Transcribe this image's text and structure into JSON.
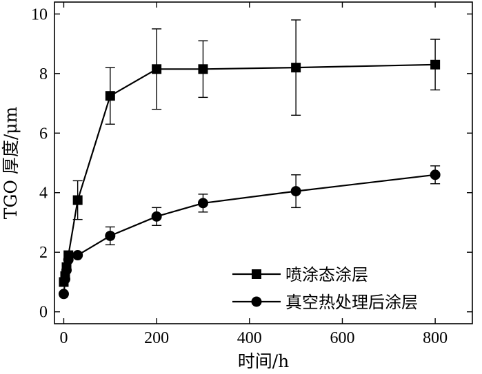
{
  "chart_data": {
    "type": "line",
    "xlabel": "时间/h",
    "ylabel": "TGO 厚度/μm",
    "xlim": [
      -20,
      880
    ],
    "ylim": [
      -0.4,
      10.4
    ],
    "xticks": [
      0,
      200,
      400,
      600,
      800
    ],
    "yticks": [
      0,
      2,
      4,
      6,
      8,
      10
    ],
    "legend_position": "bottom-right",
    "grid": false,
    "series": [
      {
        "name": "喷涂态涂层",
        "marker": "square",
        "color": "#000000",
        "x": [
          0,
          3,
          6,
          10,
          30,
          100,
          200,
          300,
          500,
          800
        ],
        "y": [
          1.0,
          1.2,
          1.5,
          1.9,
          3.75,
          7.25,
          8.15,
          8.15,
          8.2,
          8.3
        ],
        "err": [
          0,
          0,
          0,
          0,
          0.65,
          0.95,
          1.35,
          0.95,
          1.6,
          0.85
        ]
      },
      {
        "name": "真空热处理后涂层",
        "marker": "circle",
        "color": "#000000",
        "x": [
          0,
          3,
          6,
          10,
          30,
          100,
          200,
          300,
          500,
          800
        ],
        "y": [
          0.6,
          1.1,
          1.4,
          1.75,
          1.9,
          2.55,
          3.2,
          3.65,
          4.05,
          4.6
        ],
        "err": [
          0,
          0,
          0,
          0,
          0,
          0.3,
          0.3,
          0.3,
          0.55,
          0.3
        ]
      }
    ]
  }
}
